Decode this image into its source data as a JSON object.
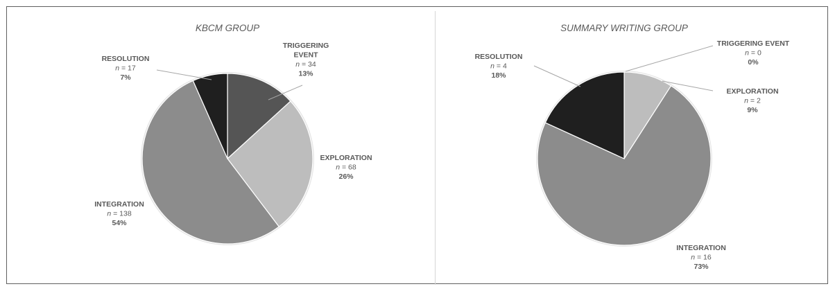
{
  "chart_data": [
    {
      "type": "pie",
      "title": "KBCM GROUP",
      "slices": [
        {
          "label_lines": [
            "TRIGGERING",
            "EVENT"
          ],
          "n": 34,
          "n_text": "= 34",
          "percent": "13%",
          "color": "#555555"
        },
        {
          "label_lines": [
            "EXPLORATION"
          ],
          "n": 68,
          "n_text": "= 68",
          "percent": "26%",
          "color": "#bdbdbd"
        },
        {
          "label_lines": [
            "INTEGRATION"
          ],
          "n": 138,
          "n_text": "= 138",
          "percent": "54%",
          "color": "#8c8c8c"
        },
        {
          "label_lines": [
            "RESOLUTION"
          ],
          "n": 17,
          "n_text": "= 17",
          "percent": "7%",
          "color": "#1f1f1f"
        }
      ]
    },
    {
      "type": "pie",
      "title": "SUMMARY WRITING GROUP",
      "slices": [
        {
          "label_lines": [
            "TRIGGERING EVENT"
          ],
          "n": 0,
          "n_text": "= 0",
          "percent": "0%",
          "color": "#555555"
        },
        {
          "label_lines": [
            "EXPLORATION"
          ],
          "n": 2,
          "n_text": "= 2",
          "percent": "9%",
          "color": "#bdbdbd"
        },
        {
          "label_lines": [
            "INTEGRATION"
          ],
          "n": 16,
          "n_text": "= 16",
          "percent": "73%",
          "color": "#8c8c8c"
        },
        {
          "label_lines": [
            "RESOLUTION"
          ],
          "n": 4,
          "n_text": "= 4",
          "percent": "18%",
          "color": "#1f1f1f"
        }
      ]
    }
  ],
  "n_symbol": "n"
}
